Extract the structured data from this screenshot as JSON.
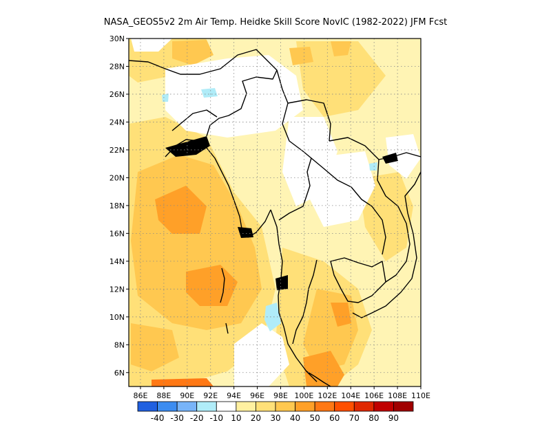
{
  "title": "NASA_GEOS5v2  2m Air Temp. Heidke Skill Score NovIC (1982-2022) JFM Fcst",
  "map": {
    "lon_range": [
      85,
      110
    ],
    "lat_range": [
      5,
      30
    ],
    "lon_ticks": [
      "86E",
      "88E",
      "90E",
      "92E",
      "94E",
      "96E",
      "98E",
      "100E",
      "102E",
      "104E",
      "106E",
      "108E",
      "110E"
    ],
    "lat_ticks": [
      "30N",
      "28N",
      "26N",
      "24N",
      "22N",
      "20N",
      "18N",
      "16N",
      "14N",
      "12N",
      "10N",
      "8N",
      "6N"
    ],
    "grid": "dotted"
  },
  "colorbar": {
    "colors": [
      "#2060e0",
      "#3c8cf0",
      "#78b4f8",
      "#b0ecf8",
      "#ffffff",
      "#fff0a0",
      "#ffe078",
      "#ffc850",
      "#ffa028",
      "#ff7814",
      "#ff5000",
      "#e02800",
      "#c00000",
      "#a00000"
    ],
    "labels": [
      "-40",
      "-30",
      "-20",
      "-10",
      "10",
      "20",
      "30",
      "40",
      "50",
      "60",
      "70",
      "80",
      "90"
    ]
  }
}
